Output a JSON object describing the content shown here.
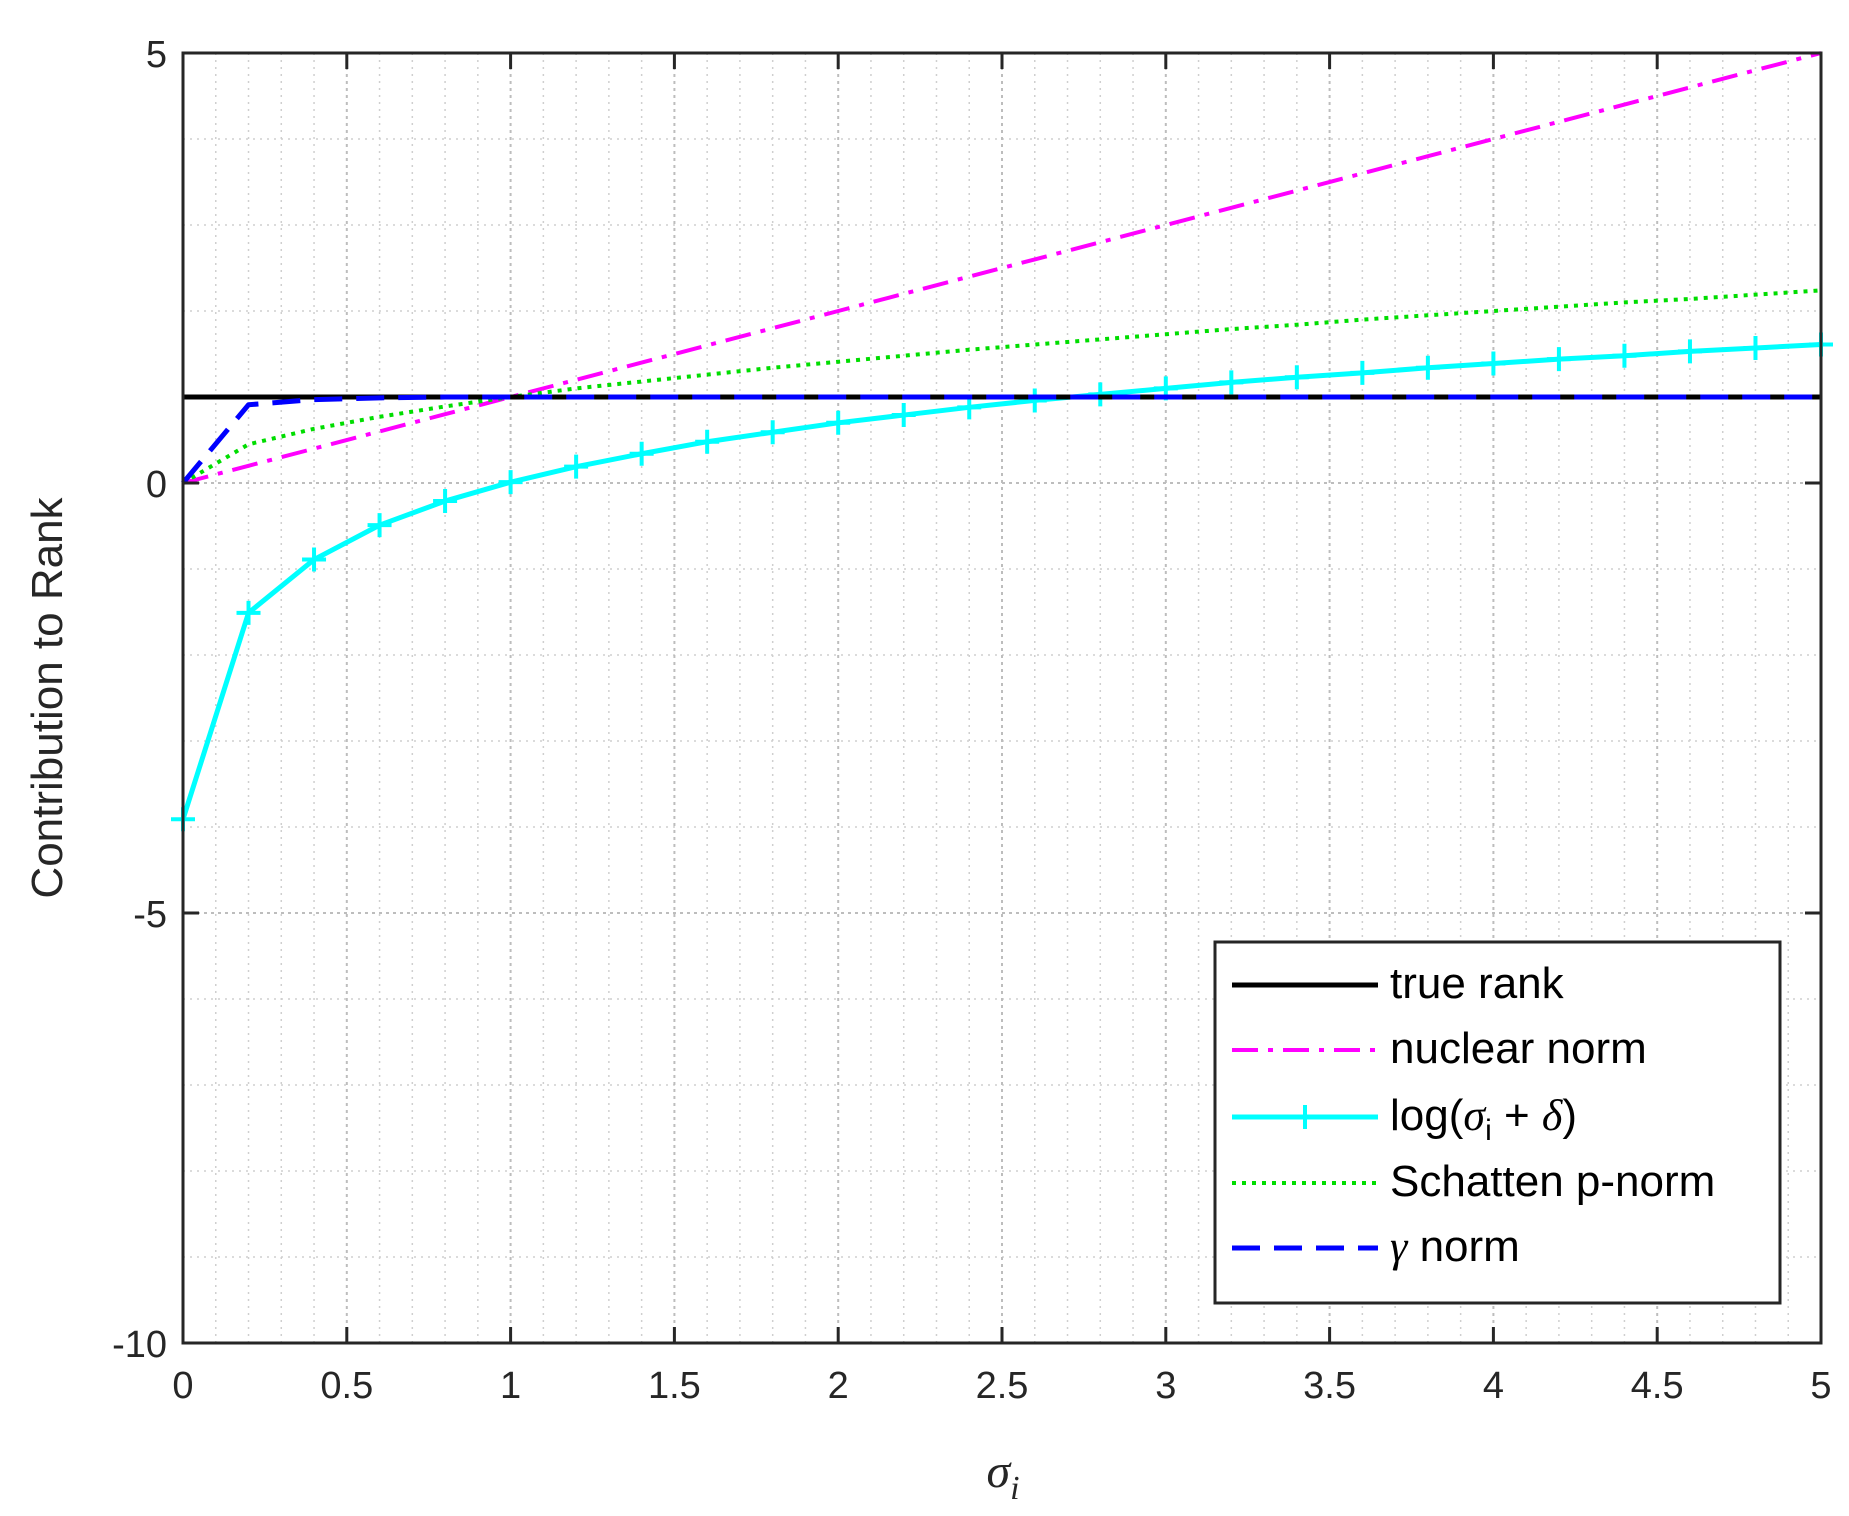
{
  "chart_data": {
    "type": "line",
    "title": "",
    "xlabel": "σ",
    "xlabel_subscript": "i",
    "ylabel": "Contribution to Rank",
    "xlim": [
      0,
      5
    ],
    "ylim": [
      -10,
      5
    ],
    "xticks": [
      0,
      0.5,
      1,
      1.5,
      2,
      2.5,
      3,
      3.5,
      4,
      4.5,
      5
    ],
    "xtick_labels": [
      "0",
      "0.5",
      "1",
      "1.5",
      "2",
      "2.5",
      "3",
      "3.5",
      "4",
      "4.5",
      "5"
    ],
    "yticks": [
      -10,
      -5,
      0,
      5
    ],
    "ytick_labels": [
      "-10",
      "-5",
      "0",
      "5"
    ],
    "grid": true,
    "minor_grid": true,
    "legend_position": "bottom-right",
    "legend": {
      "true_rank": "true rank",
      "nuclear_norm": "nuclear norm",
      "log_prefix": "log(",
      "log_sigma": "σ",
      "log_sub": "i",
      "log_mid": " + ",
      "log_delta": "δ",
      "log_suffix": ")",
      "schatten": "Schatten p-norm",
      "gamma_symbol": "γ",
      "gamma_rest": " norm"
    },
    "x": [
      0,
      0.2,
      0.4,
      0.6,
      0.8,
      1,
      1.2,
      1.4,
      1.6,
      1.8,
      2,
      2.2,
      2.4,
      2.6,
      2.8,
      3,
      3.2,
      3.4,
      3.6,
      3.8,
      4,
      4.2,
      4.4,
      4.6,
      4.8,
      5
    ],
    "series": [
      {
        "key": "true_rank",
        "color": "#000000",
        "dash": "solid",
        "marker": "none",
        "values": [
          1,
          1,
          1,
          1,
          1,
          1,
          1,
          1,
          1,
          1,
          1,
          1,
          1,
          1,
          1,
          1,
          1,
          1,
          1,
          1,
          1,
          1,
          1,
          1,
          1,
          1
        ]
      },
      {
        "key": "nuclear_norm",
        "color": "#ff00ff",
        "dash": "dashdot",
        "marker": "none",
        "values": [
          0,
          0.2,
          0.4,
          0.6,
          0.8,
          1,
          1.2,
          1.4,
          1.6,
          1.8,
          2,
          2.2,
          2.4,
          2.6,
          2.8,
          3,
          3.2,
          3.4,
          3.6,
          3.8,
          4,
          4.2,
          4.4,
          4.6,
          4.8,
          5
        ]
      },
      {
        "key": "log",
        "color": "#00ffff",
        "dash": "solid",
        "marker": "plus",
        "values": [
          -3.91,
          -1.51,
          -0.89,
          -0.49,
          -0.21,
          0.01,
          0.19,
          0.34,
          0.48,
          0.59,
          0.7,
          0.79,
          0.88,
          0.96,
          1.03,
          1.1,
          1.17,
          1.23,
          1.28,
          1.34,
          1.39,
          1.44,
          1.48,
          1.53,
          1.57,
          1.61
        ]
      },
      {
        "key": "schatten",
        "color": "#00dd00",
        "dash": "dotted",
        "marker": "none",
        "values": [
          0,
          0.45,
          0.63,
          0.77,
          0.89,
          1.0,
          1.1,
          1.18,
          1.26,
          1.34,
          1.41,
          1.48,
          1.55,
          1.61,
          1.67,
          1.73,
          1.79,
          1.84,
          1.9,
          1.95,
          2.0,
          2.05,
          2.1,
          2.14,
          2.19,
          2.24
        ]
      },
      {
        "key": "gamma",
        "color": "#0000ff",
        "dash": "dashed",
        "marker": "none",
        "values": [
          0,
          0.91,
          0.97,
          0.99,
          1,
          1,
          1,
          1,
          1,
          1,
          1,
          1,
          1,
          1,
          1,
          1,
          1,
          1,
          1,
          1,
          1,
          1,
          1,
          1,
          1,
          1
        ]
      }
    ]
  }
}
